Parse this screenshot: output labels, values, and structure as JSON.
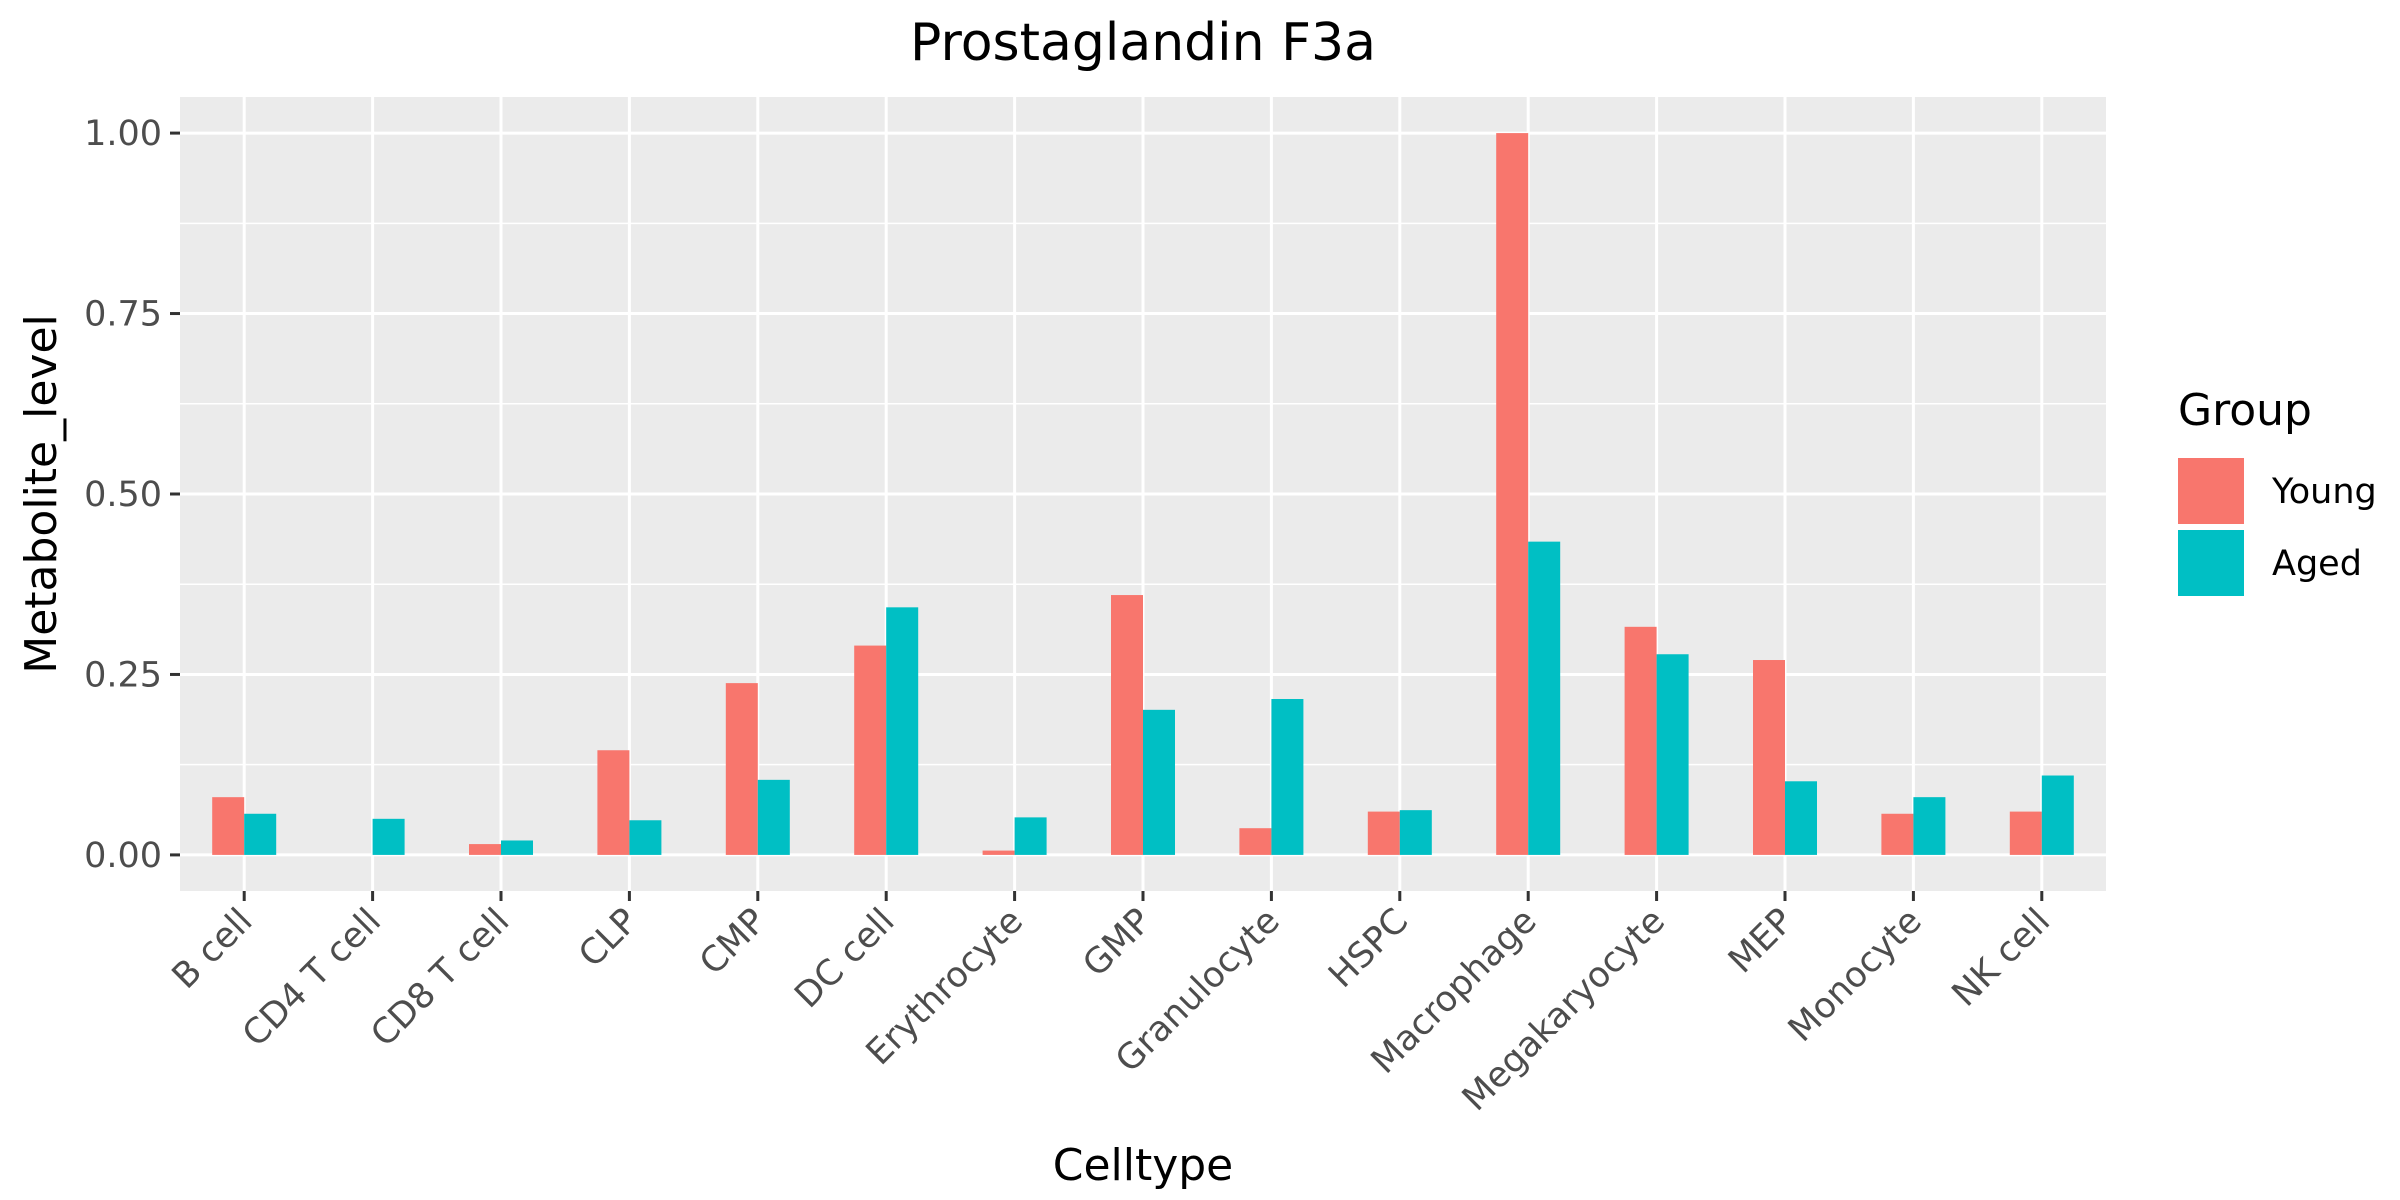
{
  "chart_data": {
    "type": "bar",
    "title": "Prostaglandin F3a",
    "xlabel": "Celltype",
    "ylabel": "Metabolite_level",
    "ylim": [
      -0.05,
      1.05
    ],
    "yticks": [
      "0.00",
      "0.25",
      "0.50",
      "0.75",
      "1.00"
    ],
    "ytick_values": [
      0,
      0.25,
      0.5,
      0.75,
      1.0
    ],
    "categories": [
      "B cell",
      "CD4 T cell",
      "CD8 T cell",
      "CLP",
      "CMP",
      "DC cell",
      "Erythrocyte",
      "GMP",
      "Granulocyte",
      "HSPC",
      "Macrophage",
      "Megakaryocyte",
      "MEP",
      "Monocyte",
      "NK cell"
    ],
    "series": [
      {
        "name": "Young",
        "color": "#F8766D",
        "values": [
          0.08,
          0.0,
          0.015,
          0.145,
          0.238,
          0.29,
          0.006,
          0.36,
          0.037,
          0.06,
          1.0,
          0.316,
          0.27,
          0.057,
          0.06
        ]
      },
      {
        "name": "Aged",
        "color": "#00BFC4",
        "values": [
          0.057,
          0.05,
          0.02,
          0.048,
          0.104,
          0.343,
          0.052,
          0.201,
          0.216,
          0.062,
          0.434,
          0.278,
          0.102,
          0.08,
          0.11
        ]
      }
    ],
    "legend": {
      "title": "Group",
      "position": "right"
    },
    "grid": true
  }
}
